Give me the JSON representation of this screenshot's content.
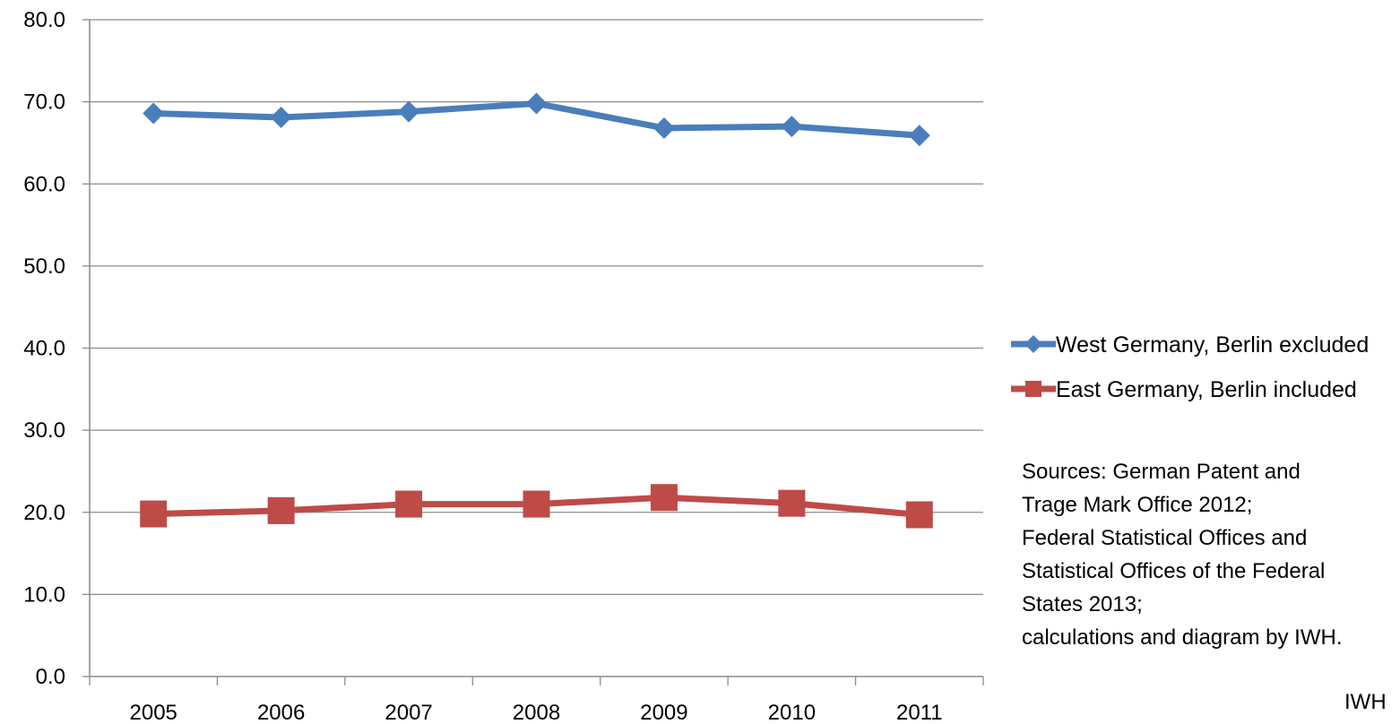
{
  "chart_data": {
    "type": "line",
    "title": "",
    "xlabel": "",
    "ylabel": "",
    "categories": [
      "2005",
      "2006",
      "2007",
      "2008",
      "2009",
      "2010",
      "2011"
    ],
    "ylim": [
      0,
      80
    ],
    "yticks": [
      "0.0",
      "10.0",
      "20.0",
      "30.0",
      "40.0",
      "50.0",
      "60.0",
      "70.0",
      "80.0"
    ],
    "grid": true,
    "legend_position": "right",
    "series": [
      {
        "name": "West Germany, Berlin excluded",
        "color": "#4a7ebb",
        "marker": "diamond",
        "values": [
          68.6,
          68.1,
          68.8,
          69.8,
          66.8,
          67.0,
          65.9
        ]
      },
      {
        "name": "East Germany, Berlin included",
        "color": "#be4b48",
        "marker": "square",
        "values": [
          19.8,
          20.2,
          21.0,
          21.0,
          21.8,
          21.1,
          19.7
        ]
      }
    ]
  },
  "notes": {
    "sources": [
      "Sources: German Patent and",
      "Trage Mark Office 2012;",
      "Federal Statistical Offices and",
      "Statistical Offices of the Federal",
      "States 2013;",
      "calculations and diagram by IWH."
    ],
    "credit": "IWH"
  }
}
